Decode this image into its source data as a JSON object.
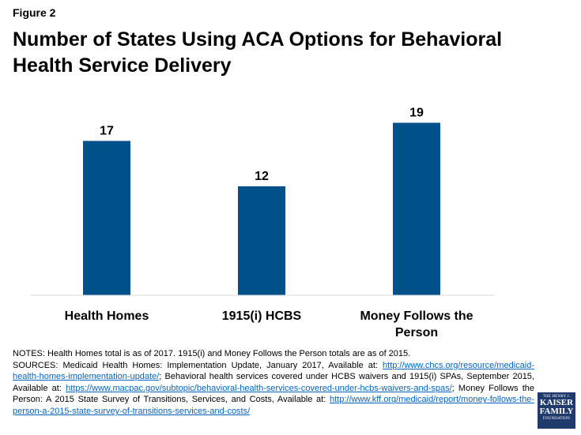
{
  "figure_label": "Figure 2",
  "title": "Number of States Using ACA Options for Behavioral Health Service Delivery",
  "colors": {
    "bar": "#00508a",
    "axis": "#d9d9d9",
    "link": "#0563c1",
    "logo_bg": "#1f3a6b"
  },
  "chart_data": {
    "type": "bar",
    "categories": [
      "Health Homes",
      "1915(i) HCBS",
      "Money Follows the Person"
    ],
    "values": [
      17,
      12,
      19
    ],
    "ylim": [
      0,
      20
    ],
    "grid": false,
    "data_labels": true
  },
  "notes": {
    "line1": "NOTES: Health Homes total is as of 2017. 1915(i) and Money Follows the Person totals are as of 2015.",
    "sources_prefix": "SOURCES: Medicaid Health Homes: Implementation Update, January 2017, Available at: ",
    "link1": "http://www.chcs.org/resource/medicaid-health-homes-implementation-update/",
    "mid1": ";  Behavioral health services covered under HCBS waivers and 1915(i) SPAs, September 2015, Available at: ",
    "link2": "https://www.macpac.gov/subtopic/behavioral-health-services-covered-under-hcbs-waivers-and-spas/",
    "mid2": ";  Money Follows the Person: A 2015 State Survey of Transitions, Services, and Costs, Available at: ",
    "link3": "http://www.kff.org/medicaid/report/money-follows-the-person-a-2015-state-survey-of-transitions-services-and-costs/"
  },
  "logo": {
    "line1": "THE HENRY J.",
    "line2": "KAISER",
    "line3": "FAMILY",
    "line4": "FOUNDATION"
  }
}
